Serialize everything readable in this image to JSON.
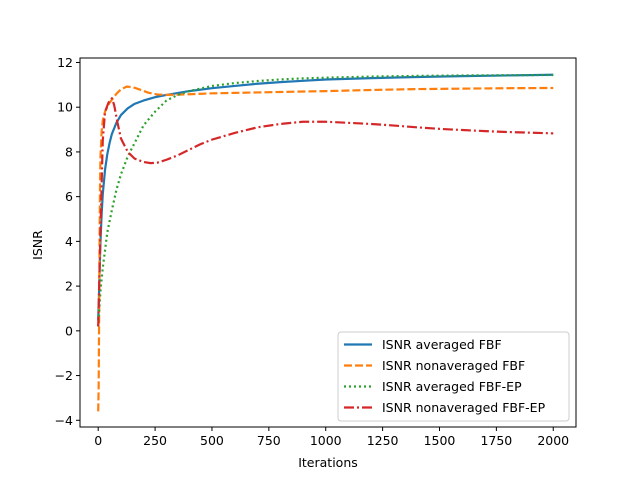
{
  "chart_data": {
    "type": "line",
    "xlabel": "Iterations",
    "ylabel": "ISNR",
    "xlim": [
      -80,
      2100
    ],
    "ylim": [
      -4.3,
      12.2
    ],
    "xticks": [
      0,
      250,
      500,
      750,
      1000,
      1250,
      1500,
      1750,
      2000
    ],
    "yticks": [
      -4,
      -2,
      0,
      2,
      4,
      6,
      8,
      10,
      12
    ],
    "grid": false,
    "legend_position": "lower right",
    "series": [
      {
        "name": "ISNR averaged FBF",
        "color": "#1f77b4",
        "style": "solid",
        "points": [
          [
            0,
            0.5
          ],
          [
            3,
            1.4
          ],
          [
            6,
            2.6
          ],
          [
            10,
            4.0
          ],
          [
            15,
            5.2
          ],
          [
            20,
            6.1
          ],
          [
            30,
            7.2
          ],
          [
            40,
            7.9
          ],
          [
            50,
            8.4
          ],
          [
            60,
            8.8
          ],
          [
            80,
            9.3
          ],
          [
            100,
            9.65
          ],
          [
            130,
            9.95
          ],
          [
            160,
            10.15
          ],
          [
            200,
            10.3
          ],
          [
            250,
            10.45
          ],
          [
            300,
            10.55
          ],
          [
            400,
            10.72
          ],
          [
            500,
            10.85
          ],
          [
            600,
            10.95
          ],
          [
            700,
            11.05
          ],
          [
            800,
            11.12
          ],
          [
            900,
            11.18
          ],
          [
            1000,
            11.24
          ],
          [
            1200,
            11.3
          ],
          [
            1400,
            11.35
          ],
          [
            1600,
            11.39
          ],
          [
            1800,
            11.42
          ],
          [
            2000,
            11.45
          ]
        ]
      },
      {
        "name": "ISNR nonaveraged FBF",
        "color": "#ff7f0e",
        "style": "dashed",
        "points": [
          [
            0,
            -3.6
          ],
          [
            2,
            -2.5
          ],
          [
            4,
            0.5
          ],
          [
            6,
            4.0
          ],
          [
            8,
            6.5
          ],
          [
            10,
            7.8
          ],
          [
            15,
            8.9
          ],
          [
            20,
            9.4
          ],
          [
            30,
            9.8
          ],
          [
            50,
            10.2
          ],
          [
            80,
            10.6
          ],
          [
            100,
            10.8
          ],
          [
            125,
            10.92
          ],
          [
            150,
            10.9
          ],
          [
            180,
            10.8
          ],
          [
            220,
            10.65
          ],
          [
            260,
            10.57
          ],
          [
            300,
            10.55
          ],
          [
            350,
            10.56
          ],
          [
            400,
            10.58
          ],
          [
            500,
            10.62
          ],
          [
            600,
            10.64
          ],
          [
            700,
            10.66
          ],
          [
            800,
            10.68
          ],
          [
            1000,
            10.72
          ],
          [
            1200,
            10.77
          ],
          [
            1400,
            10.81
          ],
          [
            1600,
            10.83
          ],
          [
            1800,
            10.85
          ],
          [
            2000,
            10.86
          ]
        ]
      },
      {
        "name": "ISNR averaged FBF-EP",
        "color": "#2ca02c",
        "style": "dotted",
        "points": [
          [
            0,
            0.2
          ],
          [
            10,
            1.8
          ],
          [
            20,
            2.8
          ],
          [
            30,
            3.6
          ],
          [
            40,
            4.4
          ],
          [
            60,
            5.4
          ],
          [
            80,
            6.3
          ],
          [
            100,
            7.0
          ],
          [
            130,
            7.8
          ],
          [
            160,
            8.4
          ],
          [
            200,
            9.2
          ],
          [
            250,
            9.8
          ],
          [
            300,
            10.3
          ],
          [
            350,
            10.55
          ],
          [
            400,
            10.72
          ],
          [
            500,
            10.95
          ],
          [
            600,
            11.08
          ],
          [
            700,
            11.17
          ],
          [
            800,
            11.24
          ],
          [
            900,
            11.29
          ],
          [
            1000,
            11.32
          ],
          [
            1200,
            11.37
          ],
          [
            1400,
            11.4
          ],
          [
            1600,
            11.42
          ],
          [
            1800,
            11.43
          ],
          [
            2000,
            11.44
          ]
        ]
      },
      {
        "name": "ISNR nonaveraged FBF-EP",
        "color": "#d62728",
        "style": "dashdot",
        "points": [
          [
            0,
            0.2
          ],
          [
            10,
            4.5
          ],
          [
            20,
            8.5
          ],
          [
            30,
            9.8
          ],
          [
            45,
            10.2
          ],
          [
            60,
            10.4
          ],
          [
            70,
            10.1
          ],
          [
            85,
            9.3
          ],
          [
            100,
            8.6
          ],
          [
            130,
            8.0
          ],
          [
            160,
            7.7
          ],
          [
            200,
            7.55
          ],
          [
            230,
            7.5
          ],
          [
            260,
            7.52
          ],
          [
            300,
            7.65
          ],
          [
            350,
            7.85
          ],
          [
            400,
            8.1
          ],
          [
            450,
            8.35
          ],
          [
            500,
            8.55
          ],
          [
            600,
            8.85
          ],
          [
            700,
            9.1
          ],
          [
            800,
            9.25
          ],
          [
            900,
            9.35
          ],
          [
            1000,
            9.35
          ],
          [
            1100,
            9.3
          ],
          [
            1200,
            9.25
          ],
          [
            1300,
            9.18
          ],
          [
            1400,
            9.1
          ],
          [
            1500,
            9.03
          ],
          [
            1600,
            8.98
          ],
          [
            1700,
            8.93
          ],
          [
            1800,
            8.89
          ],
          [
            1900,
            8.86
          ],
          [
            2000,
            8.83
          ]
        ]
      }
    ]
  }
}
